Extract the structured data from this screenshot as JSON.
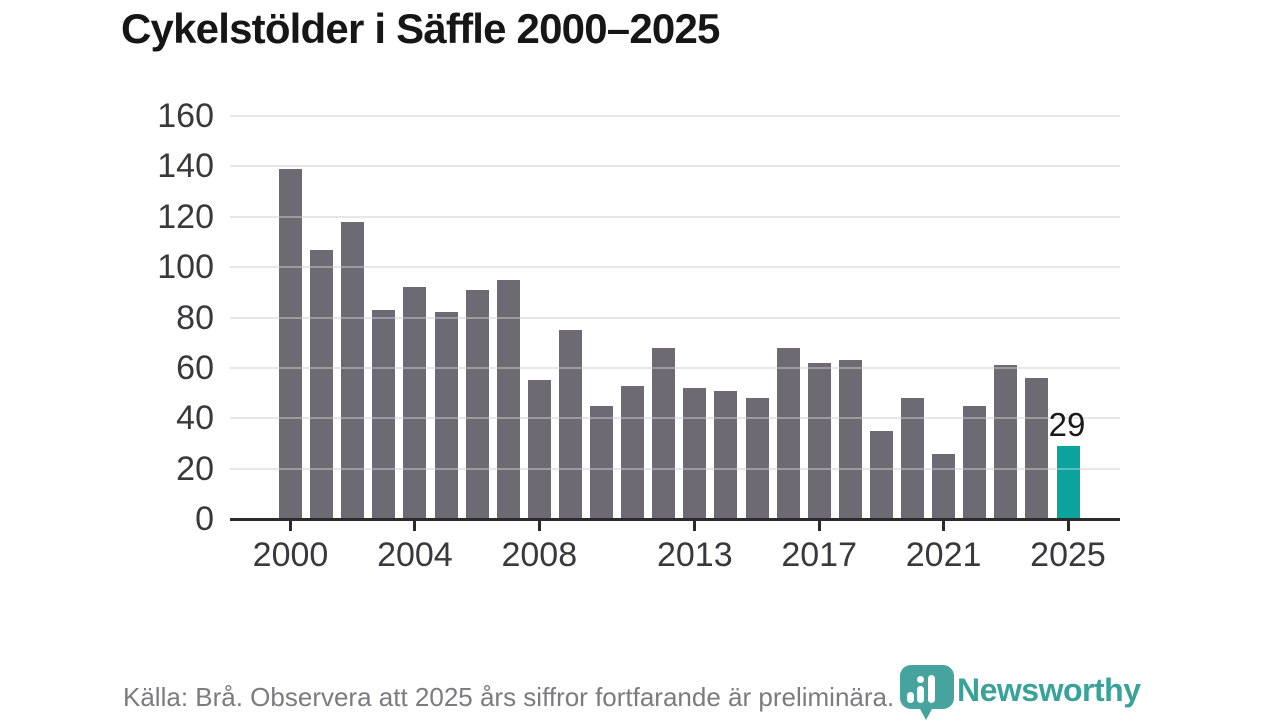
{
  "title": "Cykelstölder i Säffle 2000–2025",
  "footer": {
    "source_note": "Källa: Brå. Observera att 2025 års siffror fortfarande är preliminära."
  },
  "branding": {
    "name": "Newsworthy",
    "icon": "bar-chart-pin-icon",
    "teal": "#39a29b"
  },
  "chart_data": {
    "type": "bar",
    "title": "Cykelstölder i Säffle 2000–2025",
    "x": [
      2000,
      2001,
      2002,
      2003,
      2004,
      2005,
      2006,
      2007,
      2008,
      2009,
      2010,
      2011,
      2012,
      2013,
      2014,
      2015,
      2016,
      2017,
      2018,
      2019,
      2020,
      2021,
      2022,
      2023,
      2024,
      2025
    ],
    "values": [
      139,
      107,
      118,
      83,
      92,
      82,
      91,
      95,
      55,
      75,
      45,
      53,
      68,
      52,
      51,
      48,
      68,
      62,
      63,
      35,
      48,
      26,
      45,
      61,
      56,
      29
    ],
    "x_tick_labels": [
      "2000",
      "2004",
      "2008",
      "2013",
      "2017",
      "2021",
      "2025"
    ],
    "y_ticks": [
      0,
      20,
      40,
      60,
      80,
      100,
      120,
      140,
      160
    ],
    "ylim": [
      0,
      160
    ],
    "grid": true,
    "legend_position": "none",
    "bar_color": "#6e6a73",
    "highlight_index": 25,
    "highlight_color": "#0aa39d",
    "value_labels": [
      {
        "index": 25,
        "text": "29"
      }
    ]
  }
}
